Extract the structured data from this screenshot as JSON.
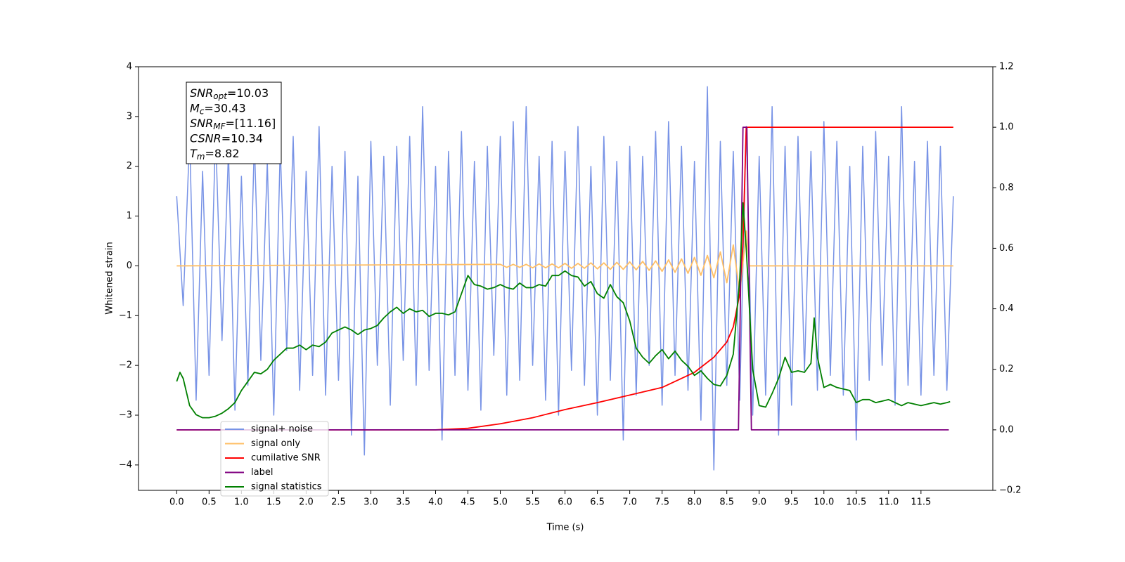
{
  "chart_data": {
    "type": "line",
    "xlabel": "Time (s)",
    "ylabel": "Whitened strain",
    "xlim": [
      -0.59,
      12.61
    ],
    "ylim": [
      -4.51,
      4
    ],
    "y2lim": [
      -0.2,
      1.2
    ],
    "xticks": [
      {
        "value": 0,
        "label": "0.0"
      },
      {
        "value": 0.5,
        "label": "0.5"
      },
      {
        "value": 1,
        "label": "1.0"
      },
      {
        "value": 1.5,
        "label": "1.5"
      },
      {
        "value": 2,
        "label": "2.0"
      },
      {
        "value": 2.5,
        "label": "2.5"
      },
      {
        "value": 3,
        "label": "3.0"
      },
      {
        "value": 3.5,
        "label": "3.5"
      },
      {
        "value": 4,
        "label": "4.0"
      },
      {
        "value": 4.5,
        "label": "4.5"
      },
      {
        "value": 5,
        "label": "5.0"
      },
      {
        "value": 5.5,
        "label": "5.5"
      },
      {
        "value": 6,
        "label": "6.0"
      },
      {
        "value": 6.5,
        "label": "6.5"
      },
      {
        "value": 7,
        "label": "7.0"
      },
      {
        "value": 7.5,
        "label": "7.5"
      },
      {
        "value": 8,
        "label": "8.0"
      },
      {
        "value": 8.5,
        "label": "8.5"
      },
      {
        "value": 9,
        "label": "9.0"
      },
      {
        "value": 9.5,
        "label": "9.5"
      },
      {
        "value": 10,
        "label": "10.0"
      },
      {
        "value": 10.5,
        "label": "10.5"
      },
      {
        "value": 11,
        "label": "11.0"
      },
      {
        "value": 11.5,
        "label": "11.5"
      }
    ],
    "yticks": [
      {
        "value": -4,
        "label": "−4"
      },
      {
        "value": -3,
        "label": "−3"
      },
      {
        "value": -2,
        "label": "−2"
      },
      {
        "value": -1,
        "label": "−1"
      },
      0,
      1,
      2,
      3,
      4
    ],
    "y2ticks": [
      {
        "value": -0.2,
        "label": "−0.2"
      },
      {
        "value": 0,
        "label": "0.0"
      },
      0.2,
      0.4,
      0.6,
      0.8,
      {
        "value": 1,
        "label": "1.0"
      },
      1.2
    ],
    "annotation": [
      {
        "main": "SNR",
        "sub": "opt",
        "rest": "=10.03"
      },
      {
        "main": "M",
        "sub": "c",
        "rest": "=30.43"
      },
      {
        "main": "SNR",
        "sub": "MF",
        "rest": "=[11.16]"
      },
      {
        "main": "CSNR",
        "rest": "=10.34"
      },
      {
        "main": "T",
        "sub": "m",
        "rest": "=8.82"
      }
    ],
    "series": [
      {
        "name": "signal+ noise",
        "color": "#7893e6",
        "x": [
          0,
          0.1,
          0.2,
          0.3,
          0.4,
          0.5,
          0.6,
          0.7,
          0.8,
          0.9,
          1,
          1.1,
          1.2,
          1.3,
          1.4,
          1.5,
          1.6,
          1.7,
          1.8,
          1.9,
          2,
          2.1,
          2.2,
          2.3,
          2.4,
          2.5,
          2.6,
          2.7,
          2.8,
          2.9,
          3,
          3.1,
          3.2,
          3.3,
          3.4,
          3.5,
          3.6,
          3.7,
          3.8,
          3.9,
          4,
          4.1,
          4.2,
          4.3,
          4.4,
          4.5,
          4.6,
          4.7,
          4.8,
          4.9,
          5,
          5.1,
          5.2,
          5.3,
          5.4,
          5.5,
          5.6,
          5.7,
          5.8,
          5.9,
          6,
          6.1,
          6.2,
          6.3,
          6.4,
          6.5,
          6.6,
          6.7,
          6.8,
          6.9,
          7,
          7.1,
          7.2,
          7.3,
          7.4,
          7.5,
          7.6,
          7.7,
          7.8,
          7.9,
          8,
          8.1,
          8.2,
          8.3,
          8.4,
          8.5,
          8.6,
          8.7,
          8.8,
          8.9,
          9,
          9.1,
          9.2,
          9.3,
          9.4,
          9.5,
          9.6,
          9.7,
          9.8,
          9.9,
          10,
          10.1,
          10.2,
          10.3,
          10.4,
          10.5,
          10.6,
          10.7,
          10.8,
          10.9,
          11,
          11.1,
          11.2,
          11.3,
          11.4,
          11.5,
          11.6,
          11.7,
          11.8,
          11.9,
          12
        ],
        "values": [
          1.4,
          -0.8,
          2.6,
          -2.7,
          1.9,
          -2.2,
          2.7,
          -1.5,
          2.3,
          -2.9,
          1.8,
          -2.4,
          2.5,
          -1.9,
          2.1,
          -3.0,
          2.4,
          -1.7,
          2.6,
          -2.5,
          1.9,
          -2.2,
          2.8,
          -2.6,
          2.0,
          -2.3,
          2.3,
          -3.4,
          1.8,
          -3.8,
          2.5,
          -2.0,
          2.2,
          -2.8,
          2.4,
          -1.9,
          2.6,
          -2.4,
          3.2,
          -2.1,
          2.0,
          -3.5,
          2.3,
          -2.2,
          2.7,
          -2.5,
          2.1,
          -2.9,
          2.4,
          -1.8,
          2.6,
          -2.6,
          2.9,
          -2.3,
          3.2,
          -2.0,
          2.2,
          -2.7,
          2.5,
          -3.0,
          2.3,
          -2.1,
          2.8,
          -2.4,
          2.0,
          -3.0,
          2.6,
          -2.3,
          2.1,
          -3.5,
          2.4,
          -2.6,
          2.2,
          -2.0,
          2.7,
          -2.8,
          2.9,
          -2.2,
          2.4,
          -2.5,
          2.1,
          -3.1,
          3.6,
          -4.1,
          2.5,
          -2.4,
          2.3,
          -2.7,
          2.8,
          -3.0,
          2.2,
          -2.6,
          3.2,
          -3.4,
          2.4,
          -2.8,
          2.6,
          -2.1,
          2.3,
          -2.5,
          2.9,
          -2.2,
          2.5,
          -2.6,
          2.0,
          -3.5,
          2.4,
          -2.3,
          2.7,
          -2.0,
          2.2,
          -2.8,
          3.2,
          -2.4,
          2.1,
          -2.6,
          2.5,
          -2.2,
          2.4,
          -2.5,
          1.4
        ]
      },
      {
        "name": "signal only",
        "color": "#ffbf66",
        "x": [
          0,
          5,
          5.1,
          5.2,
          5.3,
          5.4,
          5.5,
          5.6,
          5.7,
          5.8,
          5.9,
          6,
          6.1,
          6.2,
          6.3,
          6.4,
          6.5,
          6.6,
          6.7,
          6.8,
          6.9,
          7,
          7.1,
          7.2,
          7.3,
          7.4,
          7.5,
          7.6,
          7.7,
          7.8,
          7.9,
          8,
          8.1,
          8.2,
          8.3,
          8.4,
          8.5,
          8.6,
          8.7,
          8.8,
          8.85,
          12
        ],
        "values": [
          0,
          0.03,
          -0.03,
          0.03,
          -0.03,
          0.03,
          -0.04,
          0.04,
          -0.04,
          0.04,
          -0.04,
          0.05,
          -0.05,
          0.05,
          -0.05,
          0.06,
          -0.06,
          0.06,
          -0.07,
          0.07,
          -0.07,
          0.08,
          -0.08,
          0.09,
          -0.09,
          0.1,
          -0.11,
          0.12,
          -0.13,
          0.14,
          -0.15,
          0.17,
          -0.19,
          0.21,
          -0.24,
          0.28,
          -0.34,
          0.42,
          -0.55,
          0.7,
          0,
          0
        ]
      },
      {
        "name": "cumilative SNR",
        "color": "#ff0000",
        "axis": "y2",
        "x": [
          0,
          4,
          4.5,
          5,
          5.5,
          6,
          6.5,
          7,
          7.5,
          8,
          8.3,
          8.5,
          8.6,
          8.7,
          8.75,
          8.8,
          12
        ],
        "values": [
          0,
          0,
          0.005,
          0.02,
          0.04,
          0.067,
          0.09,
          0.115,
          0.14,
          0.19,
          0.24,
          0.29,
          0.34,
          0.45,
          0.62,
          1,
          1
        ]
      },
      {
        "name": "label",
        "color": "#800080",
        "axis": "y2",
        "x": [
          0,
          8.68,
          8.75,
          8.81,
          8.88,
          11.93
        ],
        "values": [
          0,
          0,
          1,
          1,
          0,
          0
        ]
      },
      {
        "name": "signal statistics",
        "color": "#008000",
        "axis": "y2",
        "x": [
          0,
          0.05,
          0.1,
          0.2,
          0.3,
          0.4,
          0.5,
          0.6,
          0.7,
          0.8,
          0.9,
          1,
          1.1,
          1.2,
          1.3,
          1.4,
          1.5,
          1.6,
          1.7,
          1.8,
          1.9,
          2,
          2.1,
          2.2,
          2.3,
          2.4,
          2.5,
          2.6,
          2.7,
          2.8,
          2.9,
          3,
          3.1,
          3.2,
          3.3,
          3.4,
          3.5,
          3.6,
          3.7,
          3.8,
          3.9,
          4,
          4.1,
          4.2,
          4.3,
          4.4,
          4.5,
          4.6,
          4.7,
          4.8,
          4.9,
          5,
          5.1,
          5.2,
          5.3,
          5.4,
          5.5,
          5.6,
          5.7,
          5.8,
          5.9,
          6,
          6.1,
          6.2,
          6.3,
          6.4,
          6.5,
          6.6,
          6.7,
          6.8,
          6.9,
          7,
          7.1,
          7.2,
          7.3,
          7.4,
          7.5,
          7.6,
          7.7,
          7.8,
          7.9,
          8,
          8.1,
          8.2,
          8.3,
          8.4,
          8.5,
          8.6,
          8.7,
          8.75,
          8.8,
          8.9,
          9,
          9.1,
          9.2,
          9.3,
          9.4,
          9.5,
          9.6,
          9.7,
          9.8,
          9.85,
          9.9,
          10,
          10.1,
          10.2,
          10.3,
          10.4,
          10.5,
          10.6,
          10.7,
          10.8,
          10.9,
          11,
          11.1,
          11.2,
          11.3,
          11.4,
          11.5,
          11.6,
          11.7,
          11.8,
          11.9,
          11.95
        ],
        "values": [
          0.16,
          0.19,
          0.17,
          0.08,
          0.05,
          0.04,
          0.04,
          0.045,
          0.055,
          0.07,
          0.09,
          0.13,
          0.16,
          0.19,
          0.185,
          0.2,
          0.23,
          0.25,
          0.27,
          0.27,
          0.28,
          0.265,
          0.28,
          0.275,
          0.29,
          0.32,
          0.33,
          0.34,
          0.33,
          0.315,
          0.33,
          0.335,
          0.345,
          0.37,
          0.39,
          0.405,
          0.385,
          0.4,
          0.39,
          0.395,
          0.375,
          0.385,
          0.385,
          0.38,
          0.39,
          0.45,
          0.51,
          0.48,
          0.475,
          0.465,
          0.47,
          0.48,
          0.47,
          0.465,
          0.485,
          0.47,
          0.47,
          0.48,
          0.475,
          0.51,
          0.51,
          0.525,
          0.51,
          0.505,
          0.475,
          0.49,
          0.45,
          0.435,
          0.48,
          0.44,
          0.42,
          0.36,
          0.27,
          0.24,
          0.22,
          0.245,
          0.265,
          0.235,
          0.26,
          0.23,
          0.21,
          0.18,
          0.195,
          0.17,
          0.15,
          0.145,
          0.18,
          0.25,
          0.5,
          0.75,
          0.6,
          0.2,
          0.08,
          0.075,
          0.12,
          0.17,
          0.24,
          0.19,
          0.195,
          0.19,
          0.22,
          0.37,
          0.24,
          0.14,
          0.15,
          0.14,
          0.135,
          0.13,
          0.09,
          0.1,
          0.1,
          0.09,
          0.095,
          0.1,
          0.09,
          0.08,
          0.09,
          0.085,
          0.08,
          0.085,
          0.09,
          0.085,
          0.09,
          0.093
        ]
      }
    ]
  }
}
